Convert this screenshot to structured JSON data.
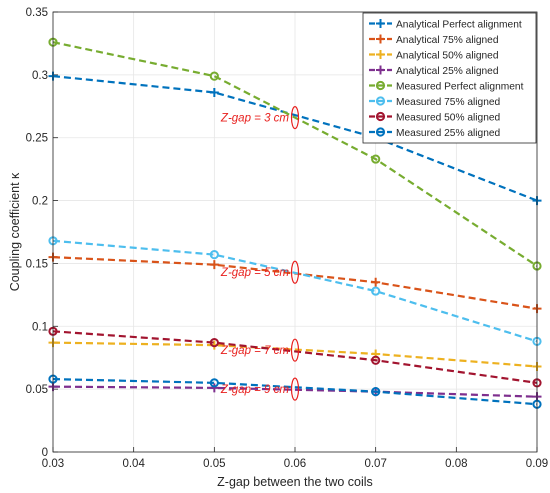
{
  "chart_data": {
    "type": "line",
    "title": "",
    "xlabel": "Z-gap between the two coils",
    "ylabel": "Coupling coefficient κ",
    "xlim": [
      0.03,
      0.09
    ],
    "ylim": [
      0,
      0.35
    ],
    "x_ticks": [
      "0.03",
      "0.04",
      "0.05",
      "0.06",
      "0.07",
      "0.08",
      "0.09"
    ],
    "y_ticks": [
      "0",
      "0.05",
      "0.1",
      "0.15",
      "0.2",
      "0.25",
      "0.3",
      "0.35"
    ],
    "grid": true,
    "legend_position": "top-right",
    "x": [
      0.03,
      0.05,
      0.07,
      0.09
    ],
    "series": [
      {
        "name": "Analytical Perfect alignment",
        "marker": "plus",
        "color": "#0072BD",
        "values": [
          0.299,
          0.286,
          0.25,
          0.2
        ]
      },
      {
        "name": "Analytical 75% aligned",
        "marker": "plus",
        "color": "#D95319",
        "values": [
          0.155,
          0.149,
          0.135,
          0.114
        ]
      },
      {
        "name": "Analytical 50% aligned",
        "marker": "plus",
        "color": "#EDB120",
        "values": [
          0.087,
          0.085,
          0.078,
          0.068
        ]
      },
      {
        "name": "Analytical 25% aligned",
        "marker": "plus",
        "color": "#7E2F8E",
        "values": [
          0.052,
          0.051,
          0.048,
          0.044
        ]
      },
      {
        "name": "Measured Perfect alignment",
        "marker": "circle",
        "color": "#77AC30",
        "values": [
          0.326,
          0.299,
          0.233,
          0.148
        ]
      },
      {
        "name": "Measured 75% aligned",
        "marker": "circle",
        "color": "#4DBEEE",
        "values": [
          0.168,
          0.157,
          0.128,
          0.088
        ]
      },
      {
        "name": "Measured 50% aligned",
        "marker": "circle",
        "color": "#A2142F",
        "values": [
          0.096,
          0.087,
          0.073,
          0.055
        ]
      },
      {
        "name": "Measured 25% aligned",
        "marker": "circle",
        "color": "#0072BD",
        "values": [
          0.058,
          0.055,
          0.048,
          0.038
        ]
      }
    ],
    "annotations": [
      {
        "text": "Z-gap = 3 cm",
        "x": 0.06,
        "y": 0.266
      },
      {
        "text": "Z-gap = 5 cm",
        "x": 0.06,
        "y": 0.143
      },
      {
        "text": "Z-gap = 7 cm",
        "x": 0.06,
        "y": 0.081
      },
      {
        "text": "Z-gap = 9 cm",
        "x": 0.06,
        "y": 0.05
      }
    ],
    "annotation_color": "#E8201E"
  }
}
